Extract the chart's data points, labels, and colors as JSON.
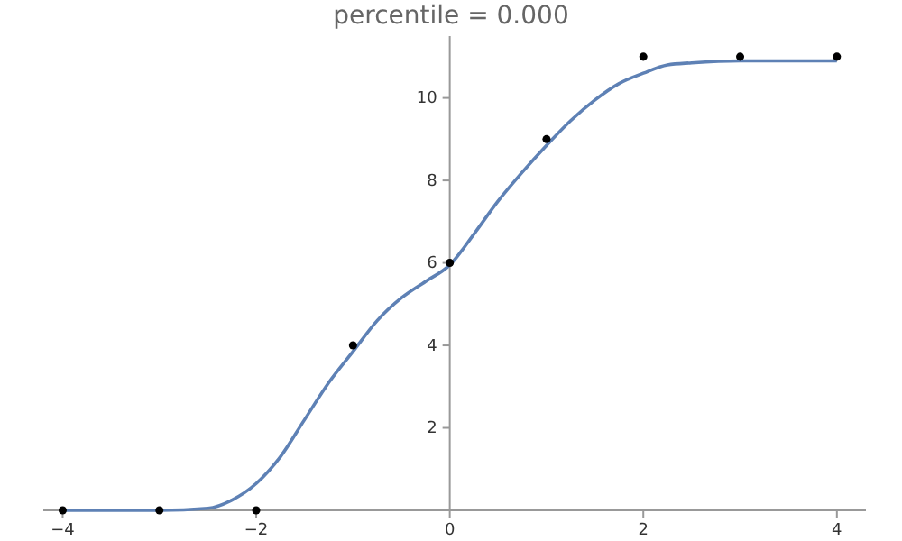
{
  "chart_data": {
    "type": "scatter",
    "title": "percentile =  0.000",
    "x": [
      -4,
      -3,
      -2,
      -1,
      0,
      1,
      2,
      3,
      4
    ],
    "series": [
      {
        "type": "line",
        "color": "#5e81b5",
        "line_style": "solid",
        "x": [
          -4,
          -3.5,
          -3,
          -2.5,
          -2.25,
          -2,
          -1.75,
          -1.5,
          -1.25,
          -1,
          -0.75,
          -0.5,
          -0.25,
          0,
          0.25,
          0.5,
          0.75,
          1,
          1.25,
          1.5,
          1.75,
          2,
          2.25,
          2.5,
          3,
          3.5,
          4
        ],
        "values": [
          0,
          0,
          0,
          0.05,
          0.25,
          0.65,
          1.3,
          2.2,
          3.1,
          3.85,
          4.6,
          5.15,
          5.55,
          5.95,
          6.7,
          7.5,
          8.2,
          8.85,
          9.45,
          9.95,
          10.35,
          10.6,
          10.8,
          10.85,
          10.9,
          10.9,
          10.9
        ]
      },
      {
        "color": "#000000",
        "marker": "circle",
        "values": [
          0,
          0,
          0,
          4,
          6,
          9,
          11,
          11,
          11
        ]
      }
    ],
    "xlim": [
      -4.2,
      4.3
    ],
    "ylim": [
      0,
      11.5
    ],
    "xticks": [
      -4,
      -2,
      0,
      2,
      4
    ],
    "yticks": [
      2,
      4,
      6,
      8,
      10
    ],
    "grid": false
  }
}
